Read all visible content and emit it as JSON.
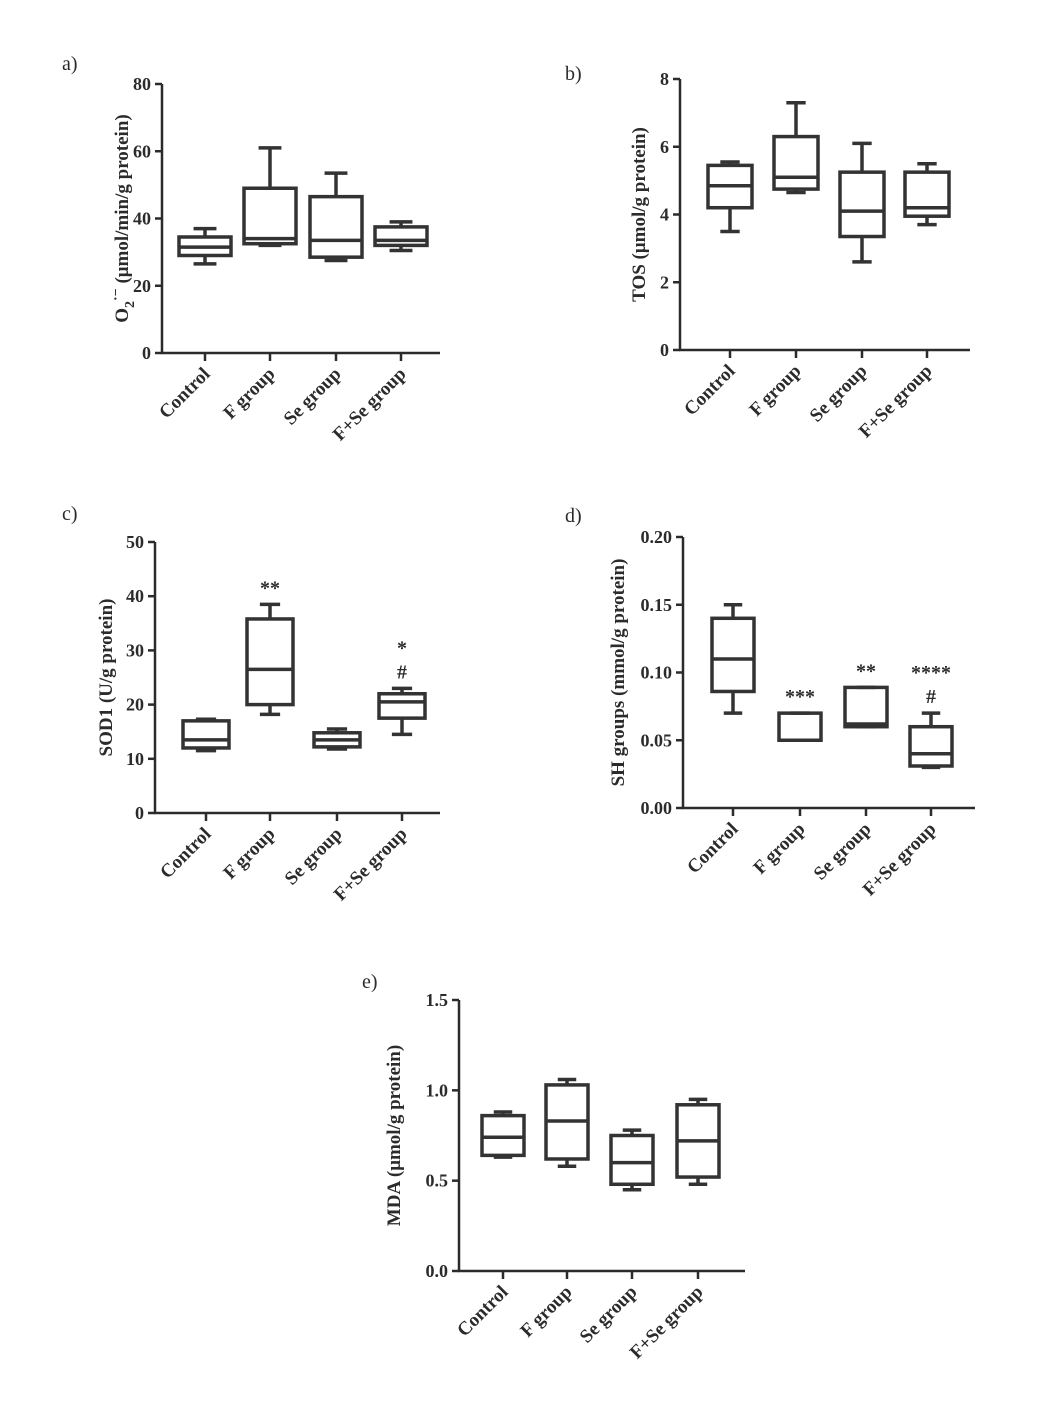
{
  "chart_data": [
    {
      "type": "box",
      "panel": "a)",
      "ylabel_parts": [
        "O",
        "2",
        "·−",
        " (μmol/min/g protein)"
      ],
      "ylim": [
        0,
        80
      ],
      "yticks": [
        "0",
        "20",
        "40",
        "60",
        "80"
      ],
      "ytick_values": [
        0,
        20,
        40,
        60,
        80
      ],
      "categories": [
        "Control",
        "F group",
        "Se group",
        "F+Se group"
      ],
      "boxes": [
        {
          "min": 26.5,
          "q1": 29,
          "median": 31.5,
          "q3": 34.5,
          "max": 37
        },
        {
          "min": 32,
          "q1": 32.5,
          "median": 34,
          "q3": 49,
          "max": 61
        },
        {
          "min": 27.5,
          "q1": 28.5,
          "median": 33.5,
          "q3": 46.5,
          "max": 53.5
        },
        {
          "min": 30.5,
          "q1": 32,
          "median": 33.5,
          "q3": 37.5,
          "max": 39
        }
      ],
      "annotations": [
        [],
        [],
        [],
        []
      ]
    },
    {
      "type": "box",
      "panel": "b)",
      "ylabel": "TOS (μmol/g protein)",
      "ylim": [
        0,
        8
      ],
      "yticks": [
        "0",
        "2",
        "4",
        "6",
        "8"
      ],
      "ytick_values": [
        0,
        2,
        4,
        6,
        8
      ],
      "categories": [
        "Control",
        "F group",
        "Se group",
        "F+Se group"
      ],
      "boxes": [
        {
          "min": 3.5,
          "q1": 4.2,
          "median": 4.85,
          "q3": 5.45,
          "max": 5.55
        },
        {
          "min": 4.65,
          "q1": 4.75,
          "median": 5.1,
          "q3": 6.3,
          "max": 7.3
        },
        {
          "min": 2.6,
          "q1": 3.35,
          "median": 4.1,
          "q3": 5.25,
          "max": 6.1
        },
        {
          "min": 3.7,
          "q1": 3.95,
          "median": 4.2,
          "q3": 5.25,
          "max": 5.5
        }
      ],
      "annotations": [
        [],
        [],
        [],
        []
      ]
    },
    {
      "type": "box",
      "panel": "c)",
      "ylabel": "SOD1 (U/g protein)",
      "ylim": [
        0,
        50
      ],
      "yticks": [
        "0",
        "10",
        "20",
        "30",
        "40",
        "50"
      ],
      "ytick_values": [
        0,
        10,
        20,
        30,
        40,
        50
      ],
      "categories": [
        "Control",
        "F group",
        "Se group",
        "F+Se group"
      ],
      "boxes": [
        {
          "min": 11.5,
          "q1": 12,
          "median": 13.5,
          "q3": 17,
          "max": 17.3
        },
        {
          "min": 18.2,
          "q1": 20,
          "median": 26.5,
          "q3": 35.8,
          "max": 38.5
        },
        {
          "min": 11.8,
          "q1": 12.2,
          "median": 13.5,
          "q3": 14.8,
          "max": 15.5
        },
        {
          "min": 14.5,
          "q1": 17.5,
          "median": 20.5,
          "q3": 22,
          "max": 23
        }
      ],
      "annotations": [
        [],
        [
          "**"
        ],
        [],
        [
          "*",
          "#"
        ]
      ]
    },
    {
      "type": "box",
      "panel": "d)",
      "ylabel": "SH groups (mmol/g protein)",
      "ylim": [
        0,
        0.2
      ],
      "yticks": [
        "0.00",
        "0.05",
        "0.10",
        "0.15",
        "0.20"
      ],
      "ytick_values": [
        0,
        0.05,
        0.1,
        0.15,
        0.2
      ],
      "categories": [
        "Control",
        "F group",
        "Se group",
        "F+Se group"
      ],
      "boxes": [
        {
          "min": 0.07,
          "q1": 0.086,
          "median": 0.11,
          "q3": 0.14,
          "max": 0.15
        },
        {
          "min": 0.05,
          "q1": 0.05,
          "median": 0.05,
          "q3": 0.07,
          "max": 0.07
        },
        {
          "min": 0.06,
          "q1": 0.06,
          "median": 0.062,
          "q3": 0.089,
          "max": 0.089
        },
        {
          "min": 0.03,
          "q1": 0.031,
          "median": 0.04,
          "q3": 0.06,
          "max": 0.07
        }
      ],
      "annotations": [
        [],
        [
          "***"
        ],
        [
          "**"
        ],
        [
          "****",
          "#"
        ]
      ]
    },
    {
      "type": "box",
      "panel": "e)",
      "ylabel": "MDA (μmol/g protein)",
      "ylim": [
        0,
        1.5
      ],
      "yticks": [
        "0.0",
        "0.5",
        "1.0",
        "1.5"
      ],
      "ytick_values": [
        0,
        0.5,
        1.0,
        1.5
      ],
      "categories": [
        "Control",
        "F group",
        "Se group",
        "F+Se group"
      ],
      "boxes": [
        {
          "min": 0.63,
          "q1": 0.64,
          "median": 0.74,
          "q3": 0.86,
          "max": 0.88
        },
        {
          "min": 0.58,
          "q1": 0.62,
          "median": 0.83,
          "q3": 1.03,
          "max": 1.06
        },
        {
          "min": 0.45,
          "q1": 0.48,
          "median": 0.6,
          "q3": 0.75,
          "max": 0.78
        },
        {
          "min": 0.48,
          "q1": 0.52,
          "median": 0.72,
          "q3": 0.92,
          "max": 0.95
        }
      ],
      "annotations": [
        [],
        [],
        [],
        []
      ]
    }
  ]
}
